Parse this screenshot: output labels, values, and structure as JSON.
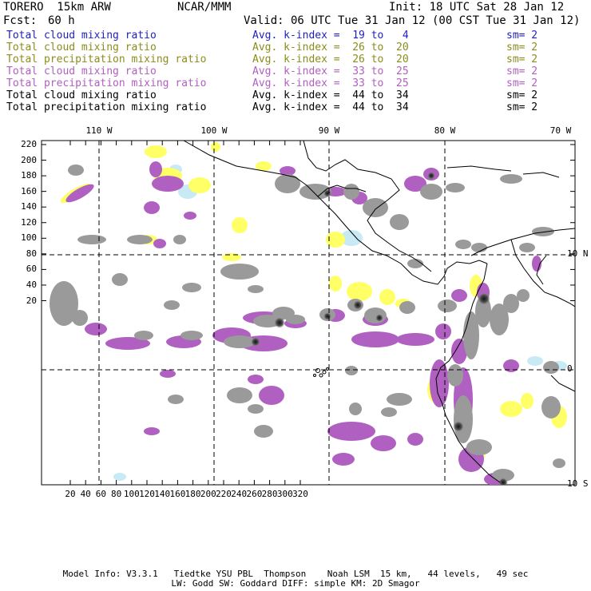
{
  "header": {
    "model": "TORERO  15km ARW",
    "org": "NCAR/MMM",
    "init": "Init: 18 UTC Sat 28 Jan 12",
    "fcst_label": "Fcst:",
    "fcst_value": "60 h",
    "valid": "Valid: 06 UTC Tue 31 Jan 12 (00 CST Tue 31 Jan 12)"
  },
  "legend": [
    {
      "field": "Total cloud mixing ratio",
      "kindex": "Avg. k-index =  19 to   4",
      "sm": "sm= 2",
      "color": "#1f1fbf"
    },
    {
      "field": "Total cloud mixing ratio",
      "kindex": "Avg. k-index =  26 to  20",
      "sm": "sm= 2",
      "color": "#8c8c1c"
    },
    {
      "field": "Total precipitation mixing ratio",
      "kindex": "Avg. k-index =  26 to  20",
      "sm": "sm= 2",
      "color": "#8c8c1c"
    },
    {
      "field": "Total cloud mixing ratio",
      "kindex": "Avg. k-index =  33 to  25",
      "sm": "sm= 2",
      "color": "#b060c0"
    },
    {
      "field": "Total precipitation mixing ratio",
      "kindex": "Avg. k-index =  33 to  25",
      "sm": "sm= 2",
      "color": "#b060c0"
    },
    {
      "field": "Total cloud mixing ratio",
      "kindex": "Avg. k-index =  44 to  34",
      "sm": "sm= 2",
      "color": "#000000"
    },
    {
      "field": "Total precipitation mixing ratio",
      "kindex": "Avg. k-index =  44 to  34",
      "sm": "sm= 2",
      "color": "#000000"
    }
  ],
  "axes": {
    "top_lon": [
      "110 W",
      "100 W",
      "90 W",
      "80 W",
      "70 W"
    ],
    "right_lat": [
      "10 N",
      "0",
      "10 S"
    ],
    "y_ticks": [
      "220",
      "200",
      "180",
      "160",
      "140",
      "120",
      "100",
      "80",
      "60",
      "40",
      "20"
    ],
    "x_ticks": [
      "20",
      "40",
      "60",
      "80",
      "100",
      "120",
      "140",
      "160",
      "180",
      "200",
      "220",
      "240",
      "260",
      "280",
      "300",
      "320"
    ]
  },
  "colors": {
    "cloud_gray": "#9a9a9a",
    "dark_gray": "#3a3a3a",
    "purple": "#b060c0",
    "yellow": "#ffff66",
    "light_blue": "#c8eaf5",
    "coast": "#000000"
  },
  "footer": {
    "line1": "Model Info: V3.3.1   Tiedtke YSU PBL  Thompson    Noah LSM  15 km,   44 levels,   49 sec",
    "line2": "LW: Godd SW: Goddard DIFF: simple KM: 2D Smagor"
  }
}
